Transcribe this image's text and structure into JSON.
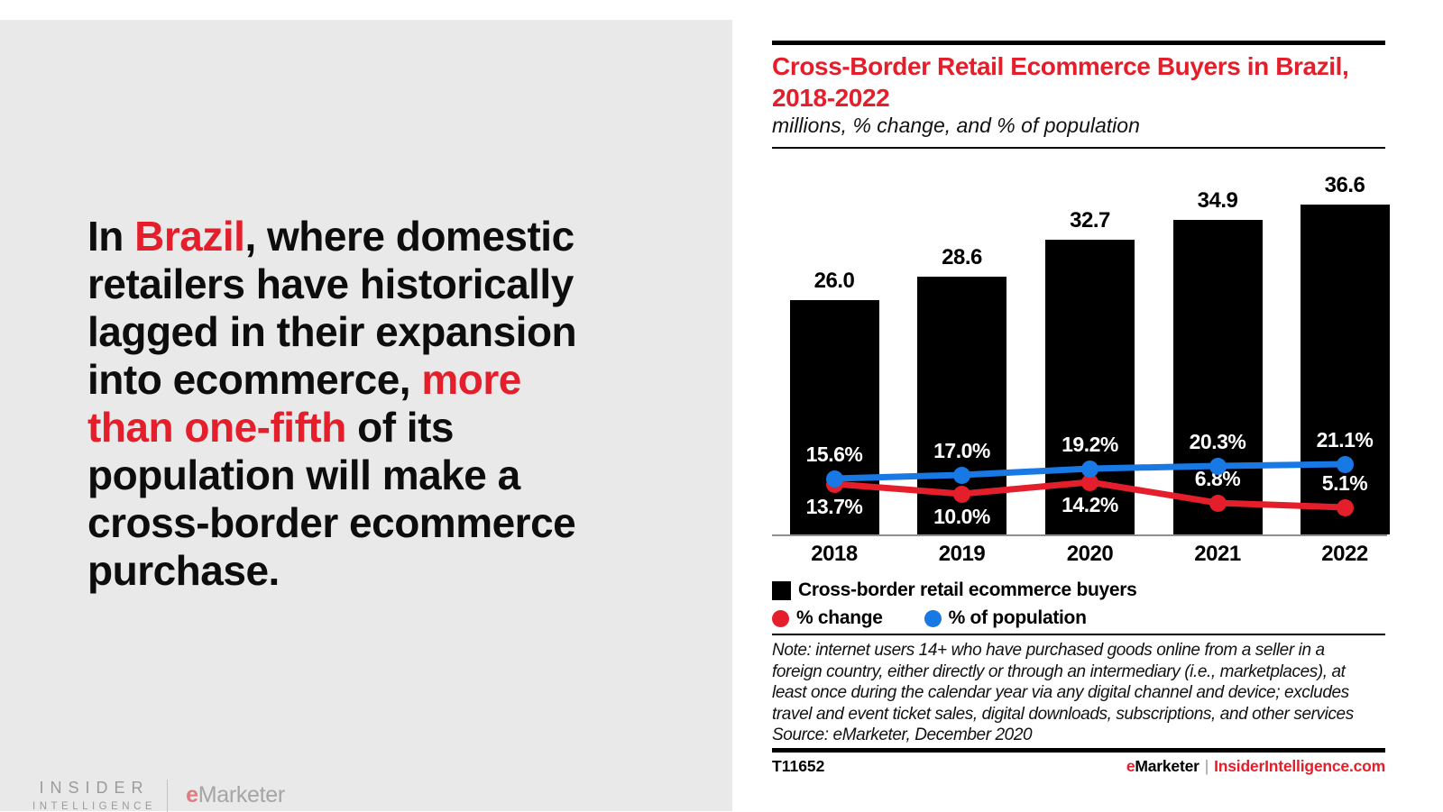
{
  "colors": {
    "red": "#e41e2a",
    "blue": "#1878e4",
    "bar_black": "#000000",
    "panel_gray": "#e9e9e9",
    "logo_gray": "#9b9b9b",
    "axis_gray": "#8f8f8f"
  },
  "left_panel": {
    "statement_segments": [
      {
        "text": "In ",
        "red": false
      },
      {
        "text": "Brazil",
        "red": true
      },
      {
        "text": ", where domestic\nretailers have historically\nlagged in their expansion\ninto ecommerce, ",
        "red": false
      },
      {
        "text": "more\nthan one-fifth",
        "red": true
      },
      {
        "text": " of its\npopulation will make a\ncross-border ecommerce\npurchase.",
        "red": false
      }
    ],
    "logo": {
      "insider_line1": "INSIDER",
      "insider_line2": "INTELLIGENCE",
      "emarketer_e": "e",
      "emarketer_rest": "Marketer"
    }
  },
  "chart": {
    "title_line1": "Cross-Border Retail Ecommerce Buyers in Brazil,",
    "title_line2": "2018-2022",
    "subtitle": "millions, % change, and % of population",
    "note_lines": [
      "Note: internet users 14+ who have purchased goods online from a seller in a",
      "foreign country, either directly or through an intermediary (i.e., marketplaces), at",
      "least once during the calendar year via any digital channel and device; excludes",
      "travel and event ticket sales, digital downloads, subscriptions, and other services"
    ],
    "source": "Source: eMarketer, December 2020",
    "footer": {
      "chart_id": "T11652",
      "brand_e": "e",
      "brand_rest": "Marketer",
      "separator": "|",
      "site": "InsiderIntelligence.com"
    }
  },
  "chart_data": {
    "type": "bar+line",
    "title": "Cross-Border Retail Ecommerce Buyers in Brazil, 2018-2022",
    "subtitle": "millions, % change, and % of population",
    "categories": [
      "2018",
      "2019",
      "2020",
      "2021",
      "2022"
    ],
    "series": [
      {
        "name": "Cross-border retail ecommerce buyers",
        "type": "bar",
        "unit": "millions",
        "color": "#000000",
        "values": [
          26.0,
          28.6,
          32.7,
          34.9,
          36.6
        ],
        "labels": [
          "26.0",
          "28.6",
          "32.7",
          "34.9",
          "36.6"
        ]
      },
      {
        "name": "% change",
        "type": "line",
        "color": "#e41e2a",
        "values": [
          13.7,
          10.0,
          14.2,
          6.8,
          5.1
        ],
        "labels": [
          "13.7%",
          "10.0%",
          "14.2%",
          "6.8%",
          "5.1%"
        ],
        "label_positions": [
          "below",
          "below",
          "below",
          "above",
          "above"
        ]
      },
      {
        "name": "% of population",
        "type": "line",
        "color": "#1878e4",
        "values": [
          15.6,
          17.0,
          19.2,
          20.3,
          21.1
        ],
        "labels": [
          "15.6%",
          "17.0%",
          "19.2%",
          "20.3%",
          "21.1%"
        ],
        "label_positions": [
          "above",
          "above",
          "above",
          "above",
          "above"
        ]
      }
    ],
    "value_labels_shown": true,
    "y_axis_shown": false,
    "legend_position": "bottom"
  }
}
